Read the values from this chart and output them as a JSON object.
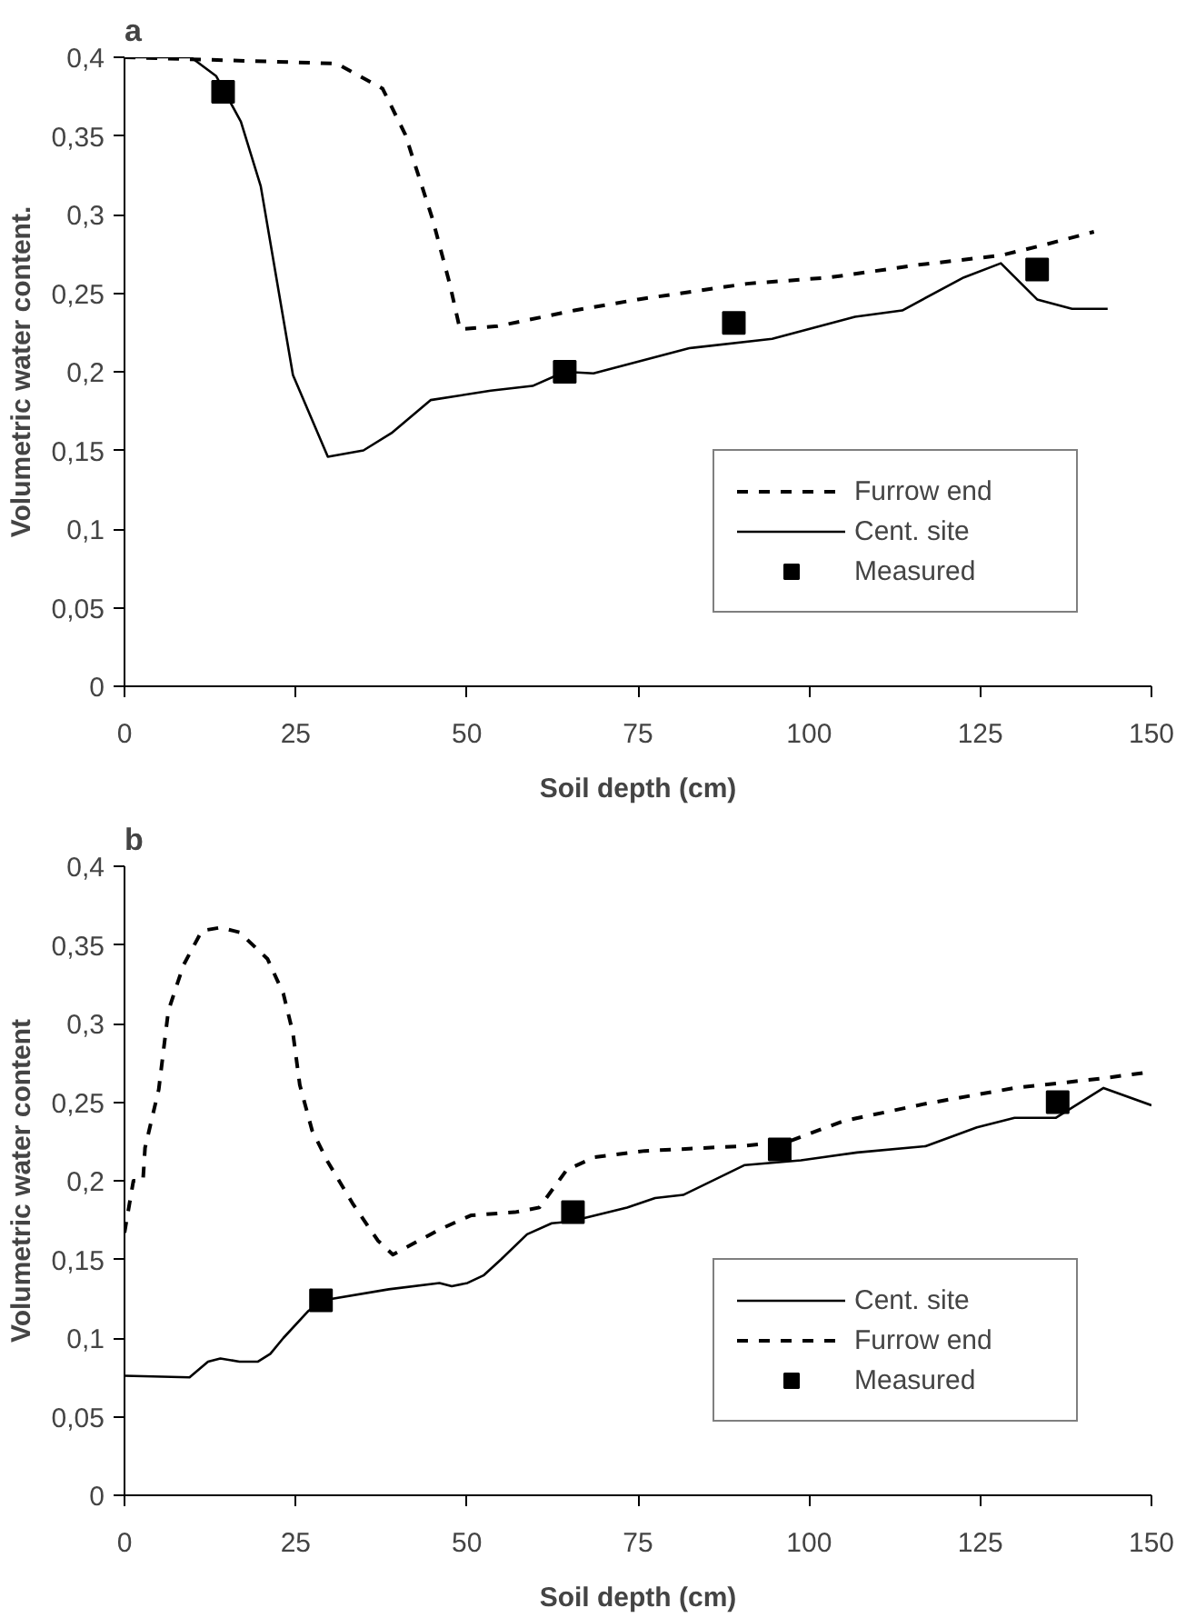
{
  "chart_data": [
    {
      "type": "line",
      "title": "a",
      "xlabel": "Soil depth (cm)",
      "ylabel": "Volumetric water content.",
      "xlim": [
        0,
        150
      ],
      "ylim": [
        0,
        0.4
      ],
      "xticks": [
        0,
        25,
        50,
        75,
        100,
        125,
        150
      ],
      "yticks": [
        0,
        {
          "value": 0.05,
          "label": "0,05"
        },
        {
          "value": 0.1,
          "label": "0,1"
        },
        {
          "value": 0.15,
          "label": "0,15"
        },
        {
          "value": 0.2,
          "label": "0,2"
        },
        {
          "value": 0.25,
          "label": "0,25"
        },
        {
          "value": 0.3,
          "label": "0,3"
        },
        {
          "value": 0.35,
          "label": "0,35"
        },
        {
          "value": 0.4,
          "label": "0,4"
        }
      ],
      "grid": false,
      "legend": "bottom right",
      "series": [
        {
          "name": "Furrow end",
          "line_style": "dashed",
          "color": "#000000",
          "x": [
            0,
            31,
            37.7,
            41,
            45,
            47.5,
            49,
            54.5,
            65.7,
            75,
            90.9,
            103,
            116,
            128,
            134.6,
            141.6
          ],
          "values": [
            0.4,
            0.396,
            0.38,
            0.351,
            0.297,
            0.256,
            0.227,
            0.229,
            0.239,
            0.246,
            0.256,
            0.26,
            0.268,
            0.274,
            0.281,
            0.289
          ]
        },
        {
          "name": "Cent. site",
          "line_style": "solid",
          "color": "#000000",
          "x": [
            0,
            9.7,
            13.4,
            17,
            19.9,
            24.6,
            29.7,
            34.9,
            39,
            44.7,
            53.5,
            59.6,
            64.3,
            68.5,
            82.5,
            94.6,
            106.7,
            113.6,
            122.6,
            128,
            133.3,
            138.4,
            143.6
          ],
          "values": [
            0.4,
            0.4,
            0.388,
            0.359,
            0.318,
            0.198,
            0.146,
            0.15,
            0.161,
            0.182,
            0.188,
            0.191,
            0.2,
            0.199,
            0.215,
            0.221,
            0.235,
            0.239,
            0.26,
            0.269,
            0.246,
            0.24,
            0.24
          ]
        },
        {
          "name": "Measured",
          "type": "scatter",
          "marker": "square",
          "color": "#000000",
          "x": [
            14.4,
            64.3,
            89,
            133.3
          ],
          "values": [
            0.378,
            0.2,
            0.231,
            0.265
          ]
        }
      ]
    },
    {
      "type": "line",
      "title": "b",
      "xlabel": "Soil depth (cm)",
      "ylabel": "Volumetric water content",
      "xlim": [
        0,
        150
      ],
      "ylim": [
        0,
        0.4
      ],
      "xticks": [
        0,
        25,
        50,
        75,
        100,
        125,
        150
      ],
      "yticks": [
        0,
        {
          "value": 0.05,
          "label": "0,05"
        },
        {
          "value": 0.1,
          "label": "0,1"
        },
        {
          "value": 0.15,
          "label": "0,15"
        },
        {
          "value": 0.2,
          "label": "0,2"
        },
        {
          "value": 0.25,
          "label": "0,25"
        },
        {
          "value": 0.3,
          "label": "0,3"
        },
        {
          "value": 0.35,
          "label": "0,35"
        },
        {
          "value": 0.4,
          "label": "0,4"
        }
      ],
      "grid": false,
      "legend": "bottom right",
      "series": [
        {
          "name": "Cent. site",
          "line_style": "solid",
          "color": "#000000",
          "x": [
            0,
            9.5,
            12.2,
            14,
            16.8,
            19.5,
            21.3,
            23.2,
            26.8,
            29,
            38.6,
            46,
            47.8,
            50.1,
            52.5,
            55,
            58.8,
            62.4,
            65,
            73.4,
            77.5,
            81.6,
            90.6,
            98.8,
            107,
            117,
            124.5,
            130,
            136,
            143,
            150
          ],
          "values": [
            0.076,
            0.075,
            0.085,
            0.087,
            0.085,
            0.085,
            0.09,
            0.1,
            0.117,
            0.124,
            0.131,
            0.135,
            0.133,
            0.135,
            0.14,
            0.15,
            0.166,
            0.173,
            0.174,
            0.183,
            0.189,
            0.191,
            0.21,
            0.213,
            0.218,
            0.222,
            0.234,
            0.24,
            0.24,
            0.259,
            0.248
          ]
        },
        {
          "name": "Furrow end",
          "line_style": "dashed",
          "color": "#000000",
          "x": [
            0,
            1.3,
            2.7,
            3,
            5,
            6.4,
            8.6,
            11.3,
            14,
            16.8,
            20.9,
            23.2,
            24.6,
            25.6,
            27.4,
            29.7,
            33.4,
            37,
            39.2,
            46,
            50.6,
            57,
            60.6,
            64.6,
            68.7,
            76,
            90,
            97,
            105,
            117,
            130,
            142.6,
            149.5
          ],
          "values": [
            0.167,
            0.2,
            0.2,
            0.221,
            0.258,
            0.308,
            0.337,
            0.359,
            0.361,
            0.358,
            0.341,
            0.319,
            0.294,
            0.261,
            0.232,
            0.212,
            0.185,
            0.162,
            0.153,
            0.169,
            0.178,
            0.18,
            0.183,
            0.207,
            0.215,
            0.219,
            0.222,
            0.225,
            0.238,
            0.249,
            0.259,
            0.265,
            0.269
          ]
        },
        {
          "name": "Measured",
          "type": "scatter",
          "marker": "square",
          "color": "#000000",
          "x": [
            28.7,
            65.5,
            95.7,
            136.3
          ],
          "values": [
            0.124,
            0.18,
            0.22,
            0.25
          ]
        }
      ]
    }
  ]
}
